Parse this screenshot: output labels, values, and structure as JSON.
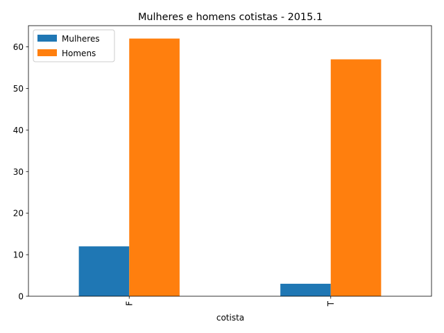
{
  "chart_data": {
    "type": "bar",
    "title": "Mulheres e homens cotistas - 2015.1",
    "xlabel": "cotista",
    "ylabel": "",
    "categories": [
      "F",
      "T"
    ],
    "series": [
      {
        "name": "Mulheres",
        "values": [
          12,
          3
        ],
        "color": "#1f77b4"
      },
      {
        "name": "Homens",
        "values": [
          62,
          57
        ],
        "color": "#ff7f0e"
      }
    ],
    "ylim": [
      0,
      65.1
    ],
    "yticks": [
      0,
      10,
      20,
      30,
      40,
      50,
      60
    ],
    "grid": false,
    "legend_position": "top-left"
  }
}
